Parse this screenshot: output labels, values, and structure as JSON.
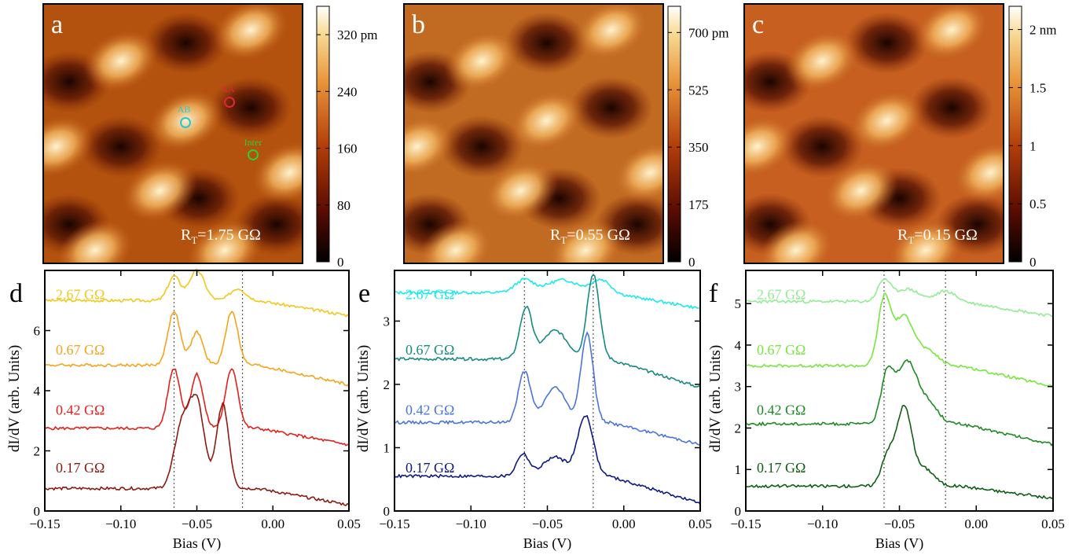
{
  "panels_top": [
    {
      "letter": "a",
      "rt": "1.75 GΩ",
      "cbar_ticks": [
        "320 pm",
        "240",
        "160",
        "80",
        "0"
      ],
      "cbar_values": [
        320,
        240,
        160,
        80,
        0
      ],
      "cbar_max": 360,
      "markers": [
        {
          "label": "AA",
          "color": "#e0263a"
        },
        {
          "label": "AB",
          "color": "#22c8d8"
        },
        {
          "label": "Inter",
          "color": "#2ecc3a"
        }
      ]
    },
    {
      "letter": "b",
      "rt": "0.55 GΩ",
      "cbar_ticks": [
        "700 pm",
        "525",
        "350",
        "175",
        "0"
      ],
      "cbar_values": [
        700,
        525,
        350,
        175,
        0
      ],
      "cbar_max": 780,
      "markers": []
    },
    {
      "letter": "c",
      "rt": "0.15 GΩ",
      "cbar_ticks": [
        "2 nm",
        "1.5",
        "1",
        "0.5",
        "0"
      ],
      "cbar_values": [
        2,
        1.5,
        1,
        0.5,
        0
      ],
      "cbar_max": 2.2,
      "markers": []
    }
  ],
  "chart_data": [
    {
      "type": "line",
      "panel": "d",
      "xlabel": "Bias (V)",
      "ylabel": "dI/dV (arb. Units)",
      "xlim": [
        -0.15,
        0.05
      ],
      "ylim": [
        0,
        8
      ],
      "xticks": [
        "−0.15",
        "−0.10",
        "−0.05",
        "0.00",
        "0.05"
      ],
      "yticks": [
        "0",
        "2",
        "4",
        "6"
      ],
      "vlines": [
        -0.065,
        -0.02
      ],
      "series": [
        {
          "name": "2.67 GΩ",
          "color": "#f2c81a",
          "offset": 7.0,
          "end": 6.5,
          "peaks": [
            [
              -0.065,
              0.8,
              0.004
            ],
            [
              -0.05,
              1.0,
              0.005
            ],
            [
              -0.023,
              0.4,
              0.005
            ]
          ]
        },
        {
          "name": "0.67 GΩ",
          "color": "#f5a41c",
          "offset": 4.85,
          "end": 4.2,
          "peaks": [
            [
              -0.065,
              1.8,
              0.004
            ],
            [
              -0.05,
              1.1,
              0.004
            ],
            [
              -0.027,
              1.8,
              0.004
            ]
          ]
        },
        {
          "name": "0.42 GΩ",
          "color": "#e3201b",
          "offset": 2.75,
          "end": 2.2,
          "peaks": [
            [
              -0.065,
              2.0,
              0.004
            ],
            [
              -0.05,
              1.8,
              0.004
            ],
            [
              -0.027,
              2.0,
              0.004
            ]
          ]
        },
        {
          "name": "0.17 GΩ",
          "color": "#8b1a10",
          "offset": 0.75,
          "end": 0.2,
          "peaks": [
            [
              -0.06,
              2.0,
              0.005
            ],
            [
              -0.05,
              2.8,
              0.005
            ],
            [
              -0.033,
              2.8,
              0.004
            ]
          ]
        }
      ]
    },
    {
      "type": "line",
      "panel": "e",
      "xlabel": "Bias (V)",
      "ylabel": "dI/dV (arb. Units)",
      "xlim": [
        -0.15,
        0.05
      ],
      "ylim": [
        0,
        3.8
      ],
      "xticks": [
        "−0.15",
        "−0.10",
        "−0.05",
        "0.00",
        "0.05"
      ],
      "yticks": [
        "0",
        "1",
        "2",
        "3"
      ],
      "vlines": [
        -0.065,
        -0.02
      ],
      "series": [
        {
          "name": "2.67 GΩ",
          "color": "#1ee8ea",
          "offset": 3.45,
          "end": 3.2,
          "peaks": [
            [
              -0.065,
              0.2,
              0.006
            ],
            [
              -0.04,
              0.2,
              0.01
            ],
            [
              -0.015,
              0.2,
              0.006
            ]
          ]
        },
        {
          "name": "0.67 GΩ",
          "color": "#178a80",
          "offset": 2.4,
          "end": 1.95,
          "peaks": [
            [
              -0.064,
              0.8,
              0.004
            ],
            [
              -0.045,
              0.45,
              0.008
            ],
            [
              -0.02,
              1.35,
              0.004
            ]
          ]
        },
        {
          "name": "0.42 GΩ",
          "color": "#4a74d8",
          "offset": 1.4,
          "end": 1.05,
          "peaks": [
            [
              -0.065,
              0.8,
              0.004
            ],
            [
              -0.045,
              0.55,
              0.007
            ],
            [
              -0.024,
              1.4,
              0.004
            ]
          ]
        },
        {
          "name": "0.17 GΩ",
          "color": "#0e1a80",
          "offset": 0.55,
          "end": 0.12,
          "peaks": [
            [
              -0.066,
              0.35,
              0.004
            ],
            [
              -0.045,
              0.3,
              0.008
            ],
            [
              -0.025,
              0.95,
              0.005
            ]
          ]
        }
      ]
    },
    {
      "type": "line",
      "panel": "f",
      "xlabel": "Bias (V)",
      "ylabel": "dI/dV (arb. Units)",
      "xlim": [
        -0.15,
        0.05
      ],
      "ylim": [
        0,
        5.8
      ],
      "xticks": [
        "−0.15",
        "−0.10",
        "−0.05",
        "0.00",
        "0.05"
      ],
      "yticks": [
        "0",
        "1",
        "2",
        "3",
        "4",
        "5"
      ],
      "vlines": [
        -0.06,
        -0.02
      ],
      "series": [
        {
          "name": "2.67 GΩ",
          "color": "#92ec92",
          "offset": 5.05,
          "end": 4.7,
          "peaks": [
            [
              -0.06,
              0.5,
              0.004
            ],
            [
              -0.045,
              0.3,
              0.008
            ],
            [
              -0.02,
              0.25,
              0.006
            ]
          ]
        },
        {
          "name": "0.67 GΩ",
          "color": "#78e63c",
          "offset": 3.5,
          "end": 3.0,
          "peaks": [
            [
              -0.06,
              1.5,
              0.004
            ],
            [
              -0.047,
              1.2,
              0.007
            ],
            [
              -0.03,
              0.3,
              0.006
            ]
          ]
        },
        {
          "name": "0.42 GΩ",
          "color": "#1f8a23",
          "offset": 2.1,
          "end": 1.6,
          "peaks": [
            [
              -0.058,
              1.1,
              0.004
            ],
            [
              -0.045,
              1.5,
              0.007
            ],
            [
              -0.03,
              0.4,
              0.006
            ]
          ]
        },
        {
          "name": "0.17 GΩ",
          "color": "#105e14",
          "offset": 0.6,
          "end": 0.3,
          "peaks": [
            [
              -0.058,
              0.7,
              0.004
            ],
            [
              -0.047,
              1.9,
              0.005
            ],
            [
              -0.033,
              0.4,
              0.006
            ]
          ]
        }
      ]
    }
  ]
}
